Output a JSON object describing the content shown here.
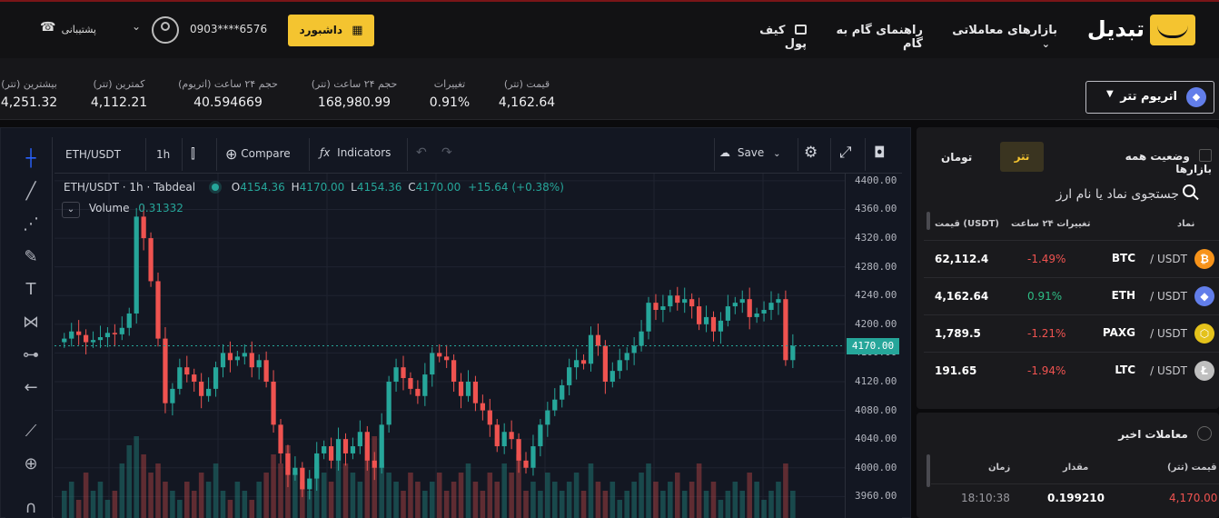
{
  "header": {
    "logo": "تبدیل",
    "nav_markets": "بازارهای معاملاتی",
    "nav_guide": "راهنمای گام به گام",
    "nav_wallet": "کیف پول",
    "dashboard": "داشبورد",
    "phone": "0903****6576",
    "support": "پشتیبانی"
  },
  "ticker": {
    "pair": "اتریوم تتر",
    "stats": [
      {
        "label": "قیمت (تتر)",
        "value": "4,162.64"
      },
      {
        "label": "تغییرات",
        "value": "0.91%"
      },
      {
        "label": "حجم ۲۴ ساعت (تتر)",
        "value": "168,980.99"
      },
      {
        "label": "حجم ۲۴ ساعت (اتریوم)",
        "value": "40.594669"
      },
      {
        "label": "کمترین (تتر)",
        "value": "4,112.21"
      },
      {
        "label": "بیشترین (تتر)",
        "value": "4,251.32"
      }
    ]
  },
  "chart": {
    "symbol": "ETH/USDT",
    "interval": "1h",
    "compare": "Compare",
    "indicators": "Indicators",
    "save": "Save",
    "legend_title": "ETH/USDT · 1h · Tabdeal",
    "ohlc_o": "4154.36",
    "ohlc_h": "4170.00",
    "ohlc_l": "4154.36",
    "ohlc_c": "4170.00",
    "ohlc_chg": "+15.64 (+0.38%)",
    "volume_label": "Volume",
    "volume_value": "0.31332",
    "last_price": "4170.00",
    "y_ticks": [
      "4400.00",
      "4360.00",
      "4320.00",
      "4280.00",
      "4240.00",
      "4200.00",
      "4160.00",
      "4120.00",
      "4080.00",
      "4040.00",
      "4000.00",
      "3960.00"
    ],
    "colors": {
      "up": "#26a69a",
      "down": "#ef5350"
    }
  },
  "chart_data": {
    "type": "candlestick",
    "series": "ETH/USDT 1h",
    "ylim": [
      3930,
      4410
    ],
    "y_ticks": [
      4400,
      4360,
      4320,
      4280,
      4240,
      4200,
      4160,
      4120,
      4080,
      4040,
      4000,
      3960
    ],
    "last": 4170,
    "closes": [
      4180,
      4190,
      4185,
      4175,
      4178,
      4182,
      4188,
      4186,
      4195,
      4215,
      4350,
      4320,
      4260,
      4180,
      4090,
      4110,
      4140,
      4130,
      4120,
      4100,
      4110,
      4140,
      4160,
      4150,
      4155,
      4160,
      4140,
      4150,
      4120,
      4060,
      4020,
      3990,
      4000,
      3970,
      3985,
      4020,
      4030,
      4010,
      4040,
      4020,
      4030,
      4050,
      4010,
      4000,
      4060,
      4120,
      4140,
      4125,
      4110,
      4100,
      4130,
      4160,
      4155,
      4150,
      4120,
      4100,
      4120,
      4090,
      4080,
      4060,
      4030,
      4050,
      4040,
      4010,
      4000,
      4030,
      4060,
      4080,
      4095,
      4115,
      4140,
      4150,
      4145,
      4185,
      4170,
      4120,
      4135,
      4150,
      4160,
      4170,
      4190,
      4230,
      4220,
      4225,
      4240,
      4230,
      4235,
      4225,
      4200,
      4210,
      4190,
      4205,
      4225,
      4230,
      4235,
      4210,
      4215,
      4220,
      4230,
      4235,
      4150,
      4170
    ],
    "volumes": [
      3,
      4,
      2,
      5,
      3,
      4,
      2,
      3,
      6,
      8,
      9,
      7,
      5,
      6,
      4,
      3,
      2,
      4,
      3,
      5,
      4,
      6,
      3,
      2,
      4,
      3,
      2,
      4,
      5,
      7,
      6,
      8,
      5,
      4,
      3,
      6,
      5,
      4,
      7,
      6,
      5,
      4,
      8,
      9,
      6,
      5,
      4,
      3,
      5,
      4,
      3,
      4,
      5,
      3,
      4,
      5,
      6,
      4,
      3,
      5,
      4,
      6,
      5,
      7,
      3,
      4,
      3,
      5,
      4,
      3,
      4,
      5,
      3,
      6,
      4,
      3,
      4,
      2,
      3,
      4,
      5,
      6,
      4,
      3,
      4,
      5,
      3,
      4,
      6,
      3,
      4,
      2,
      3,
      4,
      3,
      5,
      4,
      2,
      3,
      4,
      6,
      3
    ]
  },
  "markets": {
    "title": "وضعیت همه بازارها",
    "tab_usdt": "تتر",
    "tab_toman": "تومان",
    "search_placeholder": "جستجوی نماد یا نام ارز",
    "col_symbol": "نماد",
    "col_change": "تغییرات ۲۴ ساعت",
    "col_price": "قیمت (USDT)",
    "rows": [
      {
        "base": "BTC",
        "quote": " / USDT",
        "change": "-1.49%",
        "price": "62,112.4",
        "up": false,
        "icon": "bitcoin-icon",
        "color": "#f7931a",
        "glyph": "₿"
      },
      {
        "base": "ETH",
        "quote": " / USDT",
        "change": "0.91%",
        "price": "4,162.64",
        "up": true,
        "icon": "ethereum-icon",
        "color": "#627eea",
        "glyph": "◆"
      },
      {
        "base": "PAXG",
        "quote": " / USDT",
        "change": "-1.21%",
        "price": "1,789.5",
        "up": false,
        "icon": "paxg-icon",
        "color": "#e4c21b",
        "glyph": "⬡"
      },
      {
        "base": "LTC",
        "quote": " / USDT",
        "change": "-1.94%",
        "price": "191.65",
        "up": false,
        "icon": "litecoin-icon",
        "color": "#bfbfbf",
        "glyph": "Ł"
      }
    ]
  },
  "recent": {
    "title": "معاملات اخیر",
    "col_price": "قیمت (تتر)",
    "col_amount": "مقدار",
    "col_time": "زمان",
    "row_price": "4,170.00",
    "row_amount": "0.199210",
    "row_time": "18:10:38"
  }
}
